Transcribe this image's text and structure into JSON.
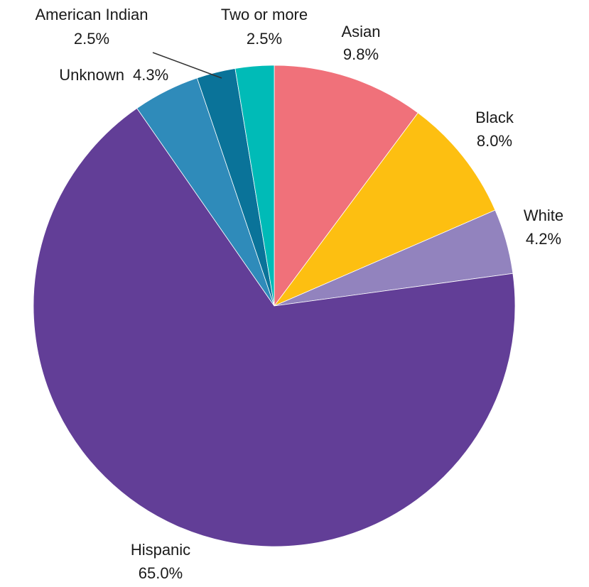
{
  "chart_data": {
    "type": "pie",
    "start": "12 o'clock",
    "direction": "clockwise",
    "slices": [
      {
        "label": "Asian",
        "value": 9.8,
        "value_label": "9.8%",
        "color": "#F0717A"
      },
      {
        "label": "Black",
        "value": 8.0,
        "value_label": "8.0%",
        "color": "#FDBF11"
      },
      {
        "label": "White",
        "value": 4.2,
        "value_label": "4.2%",
        "color": "#9283BE"
      },
      {
        "label": "Hispanic",
        "value": 65.0,
        "value_label": "65.0%",
        "color": "#623E97"
      },
      {
        "label": "Unknown",
        "value": 4.3,
        "value_label": "4.3%",
        "color": "#2F8BBA"
      },
      {
        "label": "American Indian",
        "value": 2.5,
        "value_label": "2.5%",
        "color": "#0A7399"
      },
      {
        "label": "Two or more",
        "value": 2.5,
        "value_label": "2.5%",
        "color": "#00BBB7"
      }
    ]
  }
}
